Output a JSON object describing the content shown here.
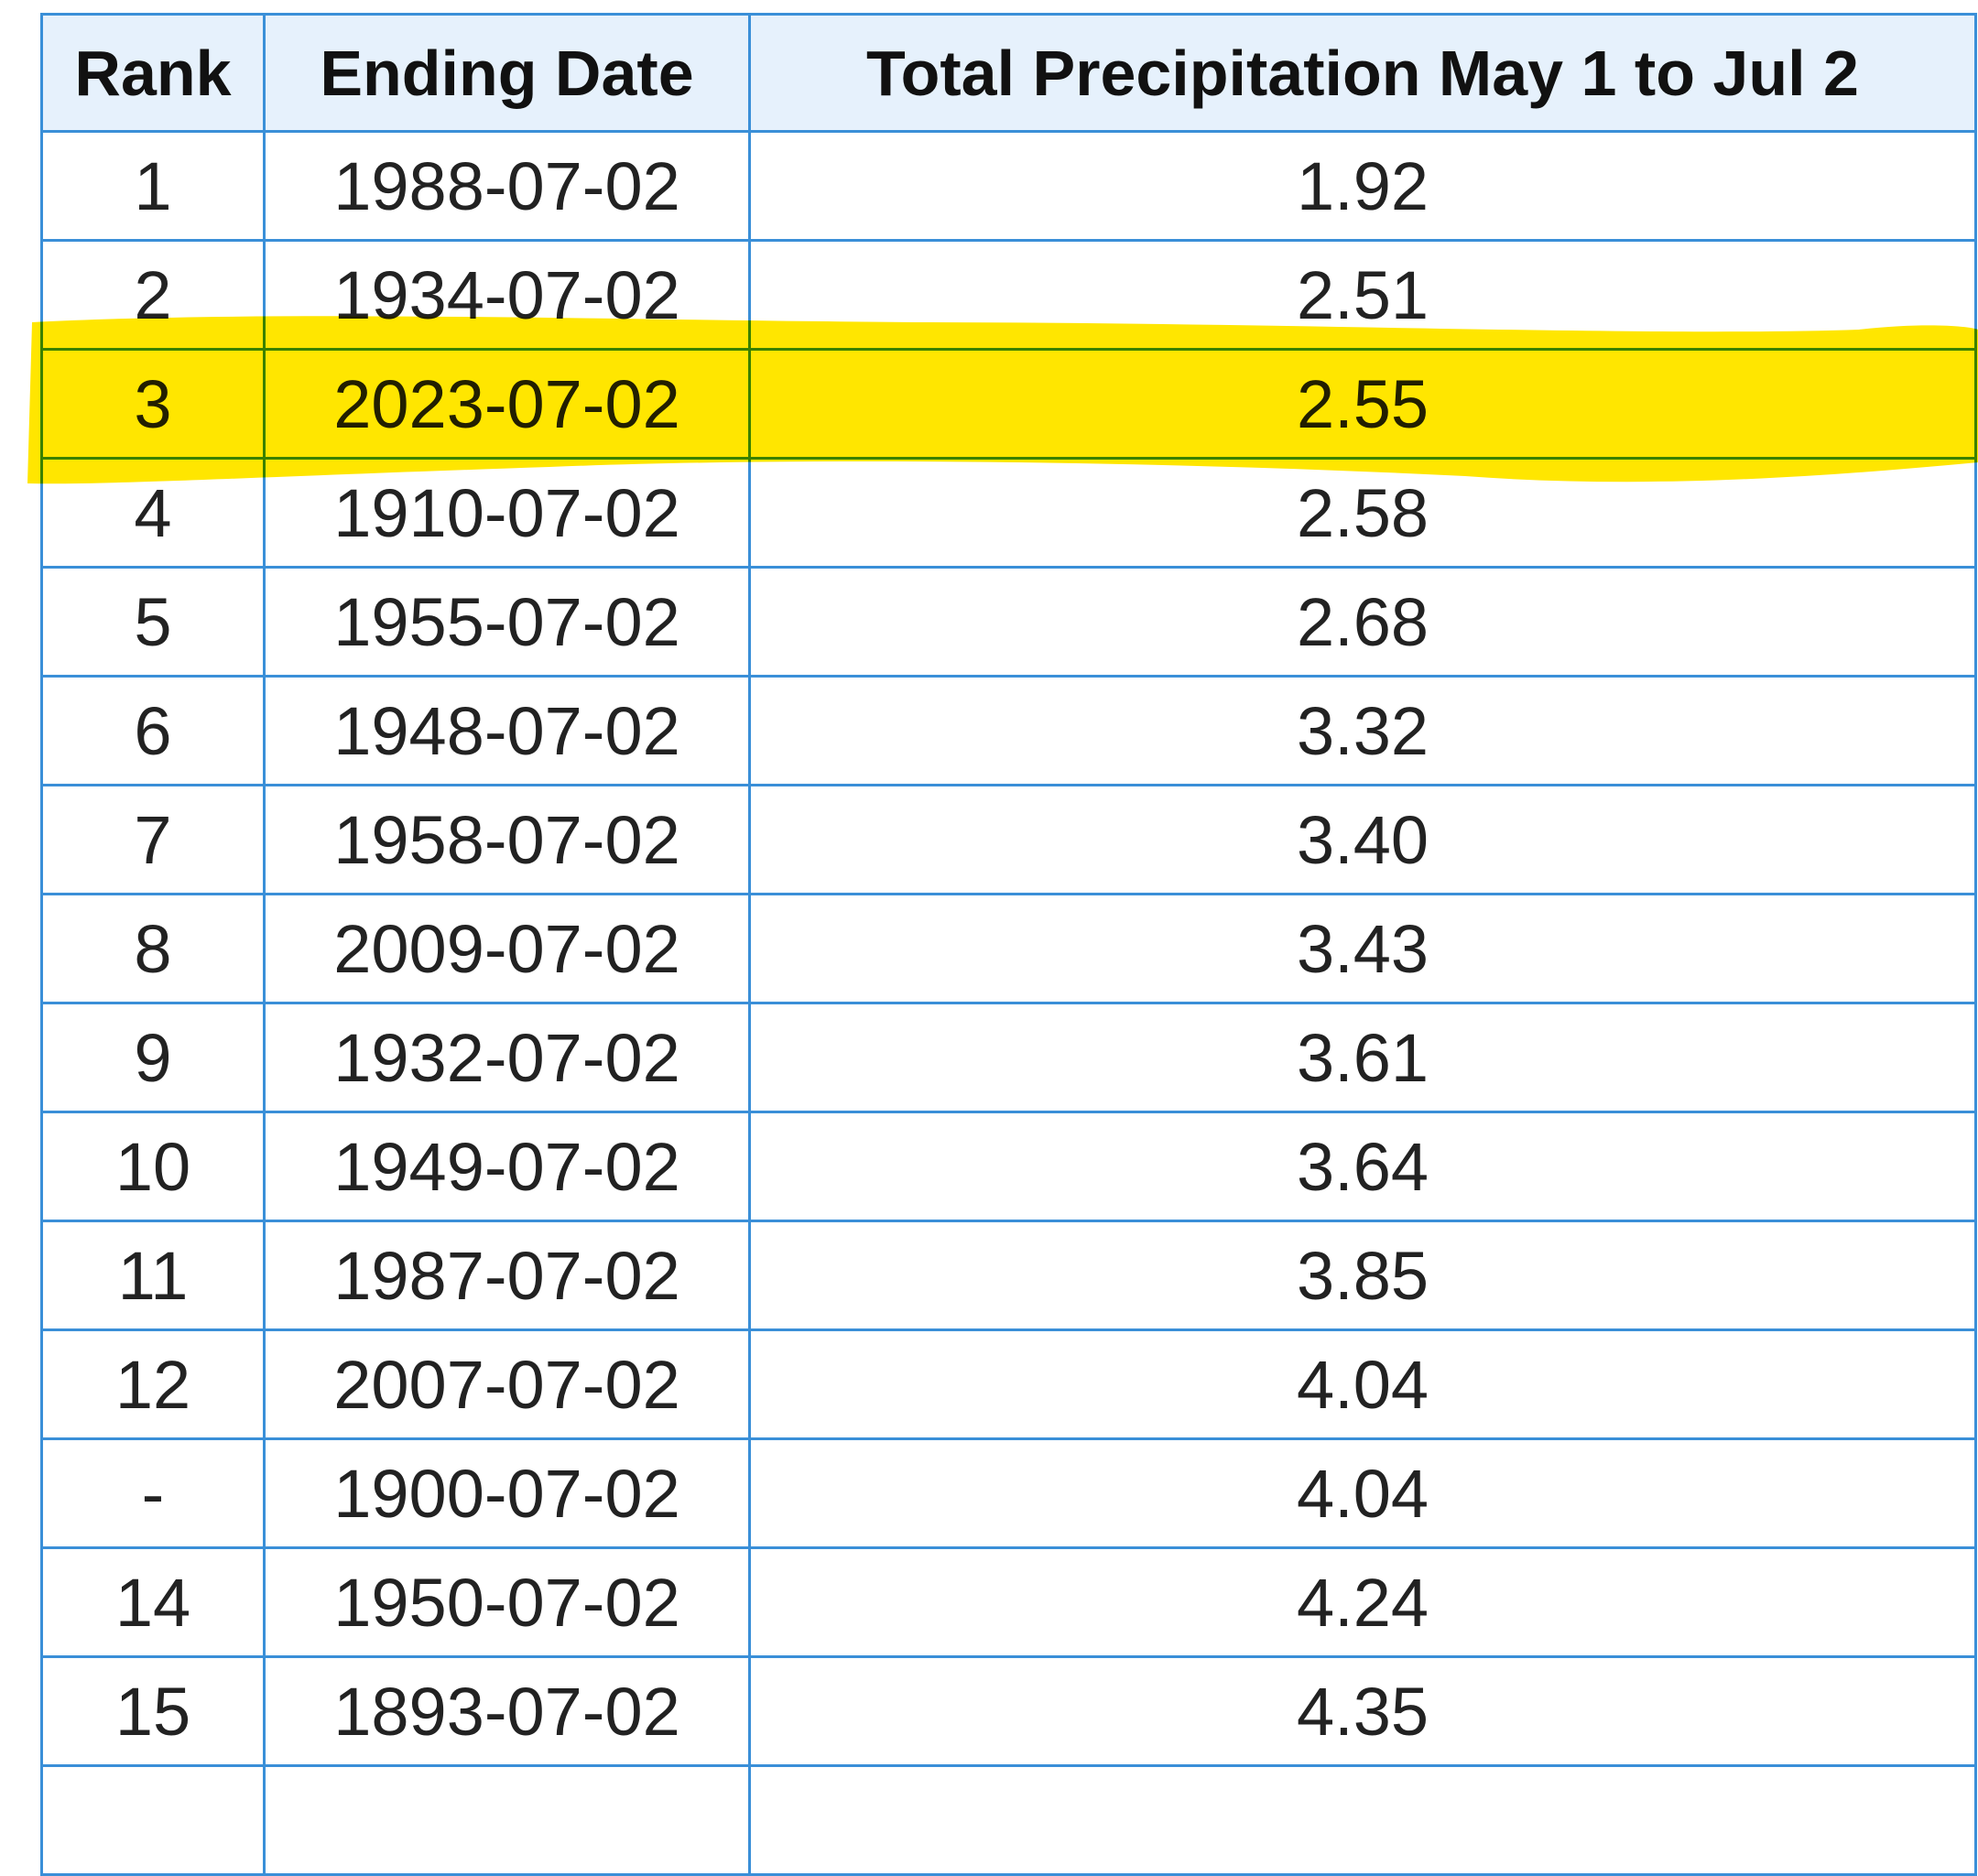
{
  "table": {
    "columns": [
      "Rank",
      "Ending Date",
      "Total Precipitation May 1 to Jul 2"
    ],
    "rows": [
      [
        "1",
        "1988-07-02",
        "1.92"
      ],
      [
        "2",
        "1934-07-02",
        "2.51"
      ],
      [
        "3",
        "2023-07-02",
        "2.55"
      ],
      [
        "4",
        "1910-07-02",
        "2.58"
      ],
      [
        "5",
        "1955-07-02",
        "2.68"
      ],
      [
        "6",
        "1948-07-02",
        "3.32"
      ],
      [
        "7",
        "1958-07-02",
        "3.40"
      ],
      [
        "8",
        "2009-07-02",
        "3.43"
      ],
      [
        "9",
        "1932-07-02",
        "3.61"
      ],
      [
        "10",
        "1949-07-02",
        "3.64"
      ],
      [
        "11",
        "1987-07-02",
        "3.85"
      ],
      [
        "12",
        "2007-07-02",
        "4.04"
      ],
      [
        "-",
        "1900-07-02",
        "4.04"
      ],
      [
        "14",
        "1950-07-02",
        "4.24"
      ],
      [
        "15",
        "1893-07-02",
        "4.35"
      ]
    ]
  }
}
